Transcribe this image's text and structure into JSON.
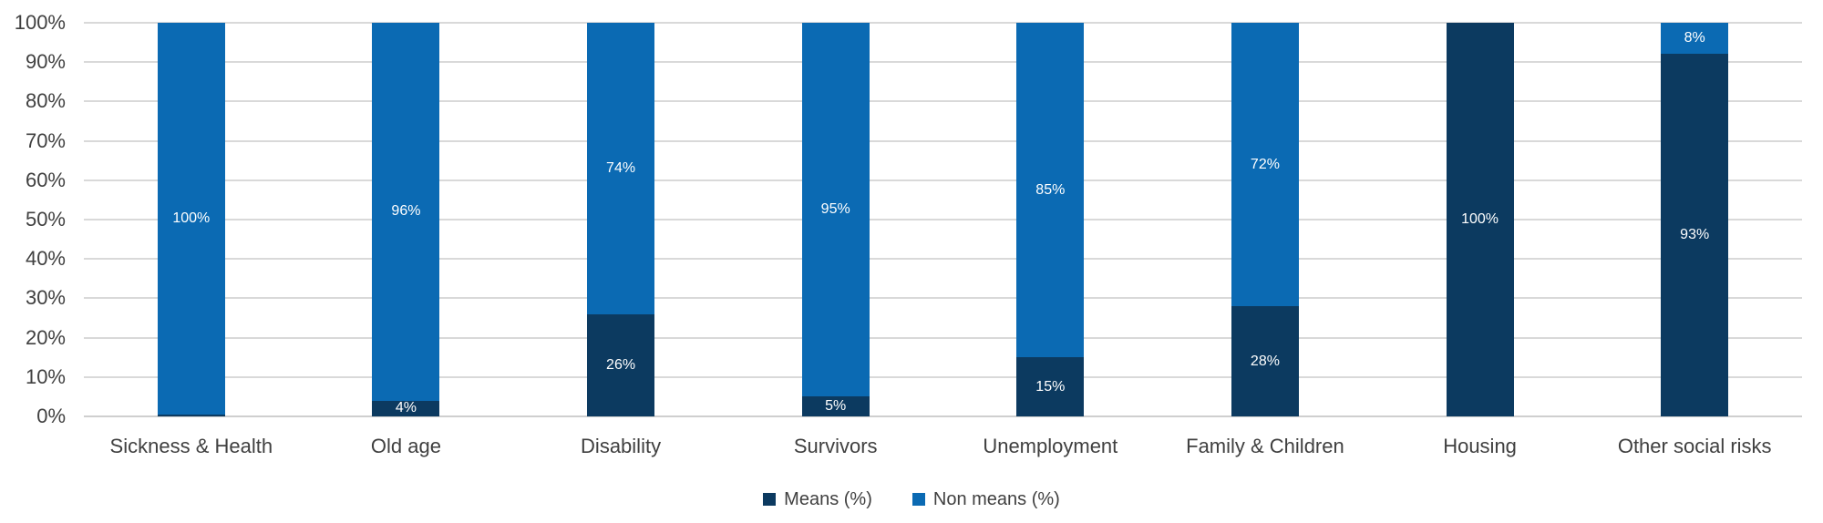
{
  "chart_data": {
    "type": "bar",
    "variant": "stacked-percent-column",
    "title": "",
    "xlabel": "",
    "ylabel": "",
    "ylim": [
      0,
      100
    ],
    "grid": true,
    "y_tick_labels": [
      "0%",
      "10%",
      "20%",
      "30%",
      "40%",
      "50%",
      "60%",
      "70%",
      "80%",
      "90%",
      "100%"
    ],
    "categories": [
      "Sickness & Health",
      "Old age",
      "Disability",
      "Survivors",
      "Unemployment",
      "Family & Children",
      "Housing",
      "Other social risks"
    ],
    "series": [
      {
        "name": "Means (%)",
        "color": "#0C3A60",
        "values": [
          0.5,
          4,
          26,
          5,
          15,
          28,
          100,
          93
        ],
        "data_labels": [
          "",
          "4%",
          "26%",
          "5%",
          "15%",
          "28%",
          "100%",
          "93%"
        ]
      },
      {
        "name": "Non means (%)",
        "color": "#0B6AB3",
        "values": [
          100,
          96,
          74,
          95,
          85,
          72,
          0,
          8
        ],
        "data_labels": [
          "100%",
          "96%",
          "74%",
          "95%",
          "85%",
          "72%",
          "",
          "8%"
        ]
      }
    ],
    "legend": {
      "position": "bottom-center",
      "items": [
        {
          "label": "Means (%)",
          "color": "#0C3A60"
        },
        {
          "label": "Non means (%)",
          "color": "#0B6AB3"
        }
      ]
    },
    "colors": {
      "background": "#ffffff",
      "gridline": "#D9D9D9",
      "axis_text": "#404040",
      "data_label_text": "#ffffff"
    }
  }
}
